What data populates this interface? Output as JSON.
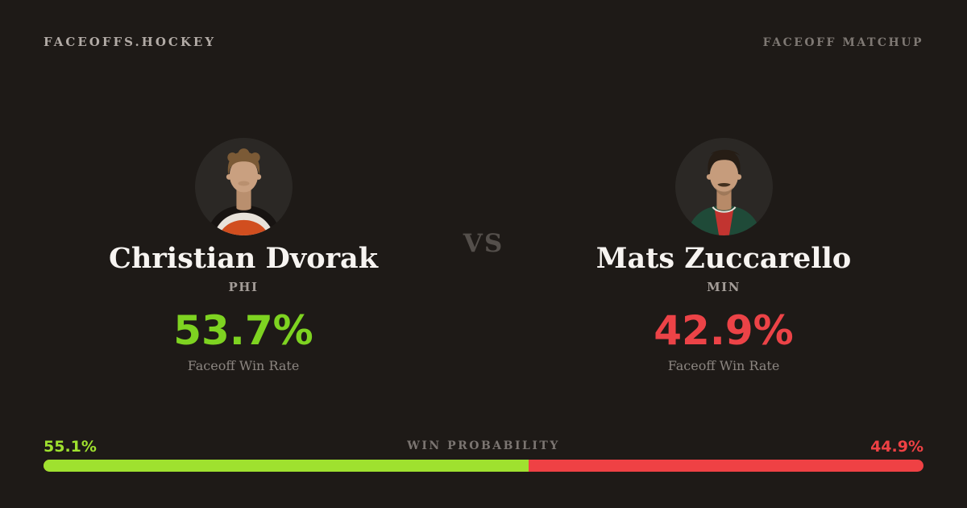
{
  "header": {
    "brand": "FACEOFFS.HOCKEY",
    "page_label": "FACEOFF MATCHUP"
  },
  "matchup": {
    "vs_label": "VS"
  },
  "players": [
    {
      "name": "Christian Dvorak",
      "team": "PHI",
      "win_rate": "53.7%",
      "stat_label": "Faceoff Win Rate",
      "accent_color": "#7ED321",
      "avatar": "christian-dvorak-headshot"
    },
    {
      "name": "Mats Zuccarello",
      "team": "MIN",
      "win_rate": "42.9%",
      "stat_label": "Faceoff Win Rate",
      "accent_color": "#EC4347",
      "avatar": "mats-zuccarello-headshot"
    }
  ],
  "win_probability": {
    "title": "WIN PROBABILITY",
    "left": {
      "label": "55.1%",
      "value": 55.1,
      "color": "#9FE12F"
    },
    "right": {
      "label": "44.9%",
      "value": 44.9,
      "color": "#EF4144"
    }
  },
  "colors": {
    "background": "#1E1A17",
    "avatar_background": "#2B2825",
    "player_name": "#F7F4F1",
    "muted_text": "#8B8580"
  }
}
